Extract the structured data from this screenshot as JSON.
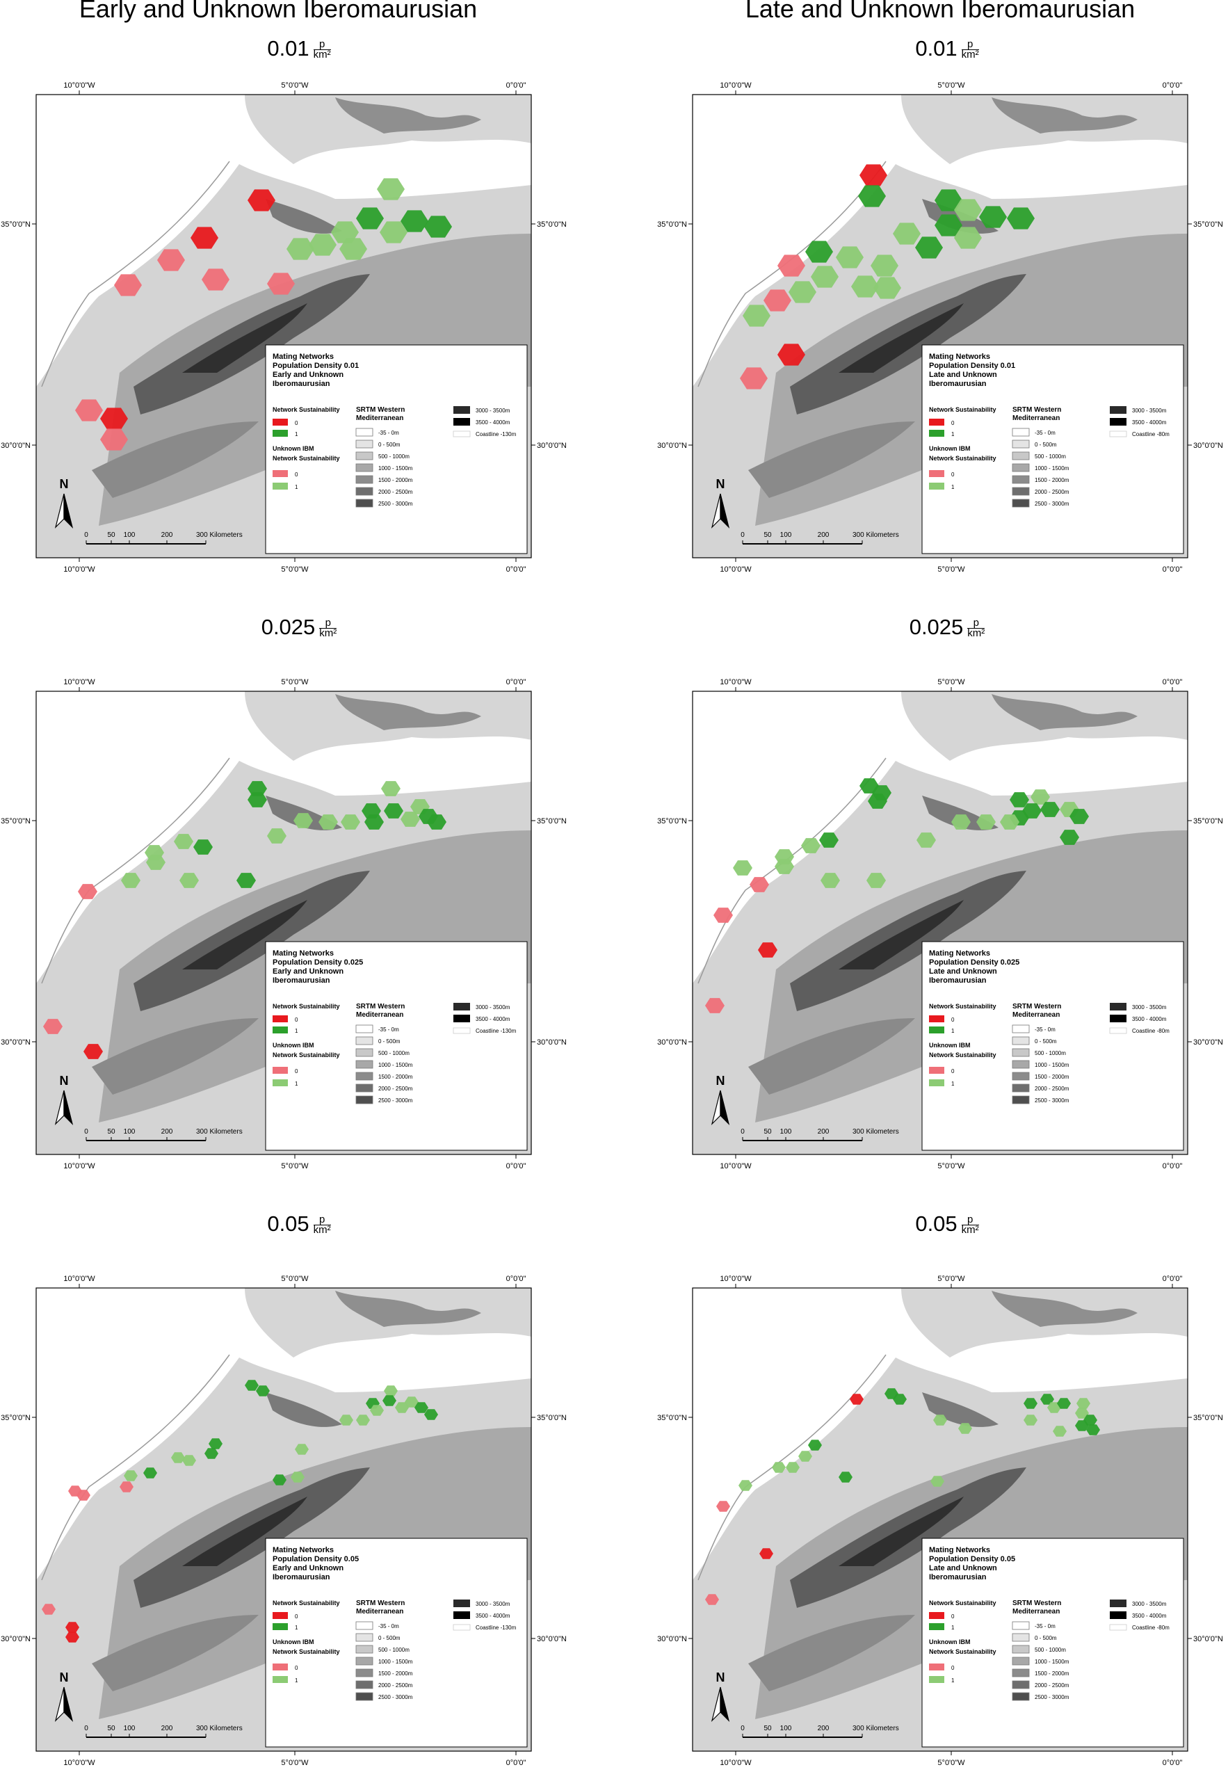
{
  "columns": [
    {
      "title": "Early and Unknown Iberomaurusian"
    },
    {
      "title": "Late and Unknown Iberomaurusian"
    }
  ],
  "unit": {
    "numerator": "p",
    "denominator": "km²"
  },
  "axes": {
    "top_ticks": [
      "10°0'0\"W",
      "5°0'0\"W",
      "0°0'0\""
    ],
    "bottom_ticks": [
      "10°0'0\"W",
      "5°0'0\"W",
      "0°0'0\""
    ],
    "lat_ticks": [
      "35°0'0\"N",
      "30°0'0\"N"
    ]
  },
  "scale_bar": {
    "labels": [
      "0",
      "50",
      "100",
      "200",
      "300 Kilometers"
    ]
  },
  "north_arrow": "N",
  "colors": {
    "sustain_0": "#e8191e",
    "sustain_1": "#2ca02c",
    "unknown_0": "#ef6f78",
    "unknown_1": "#8ccb74",
    "sea": "#ffffff",
    "low_land": "#d4d4d4"
  },
  "legend_common": {
    "network_sustainability": "Network Sustainability",
    "unknown_ibm": "Unknown IBM",
    "unknown_sustainability": "Network Sustainability",
    "val0": "0",
    "val1": "1",
    "srtm_title": "SRTM Western",
    "srtm_title2": "Mediterranean",
    "elevation_classes": [
      "-35 - 0m",
      "0 - 500m",
      "500 - 1000m",
      "1000 - 1500m",
      "1500 - 2000m",
      "2000 - 2500m",
      "2500 - 3000m"
    ],
    "elevation_high": [
      "3000 - 3500m",
      "3500 - 4000m"
    ]
  },
  "panels": [
    {
      "id": "p1",
      "density": "0.01",
      "legend": {
        "line1": "Mating Networks",
        "line2": "Population Density 0.01",
        "line3": "Early and Unknown",
        "line4": "Iberomaurusian",
        "coastline": "Coastline -130m"
      }
    },
    {
      "id": "p2",
      "density": "0.01",
      "legend": {
        "line1": "Mating Networks",
        "line2": "Population Density 0.01",
        "line3": "Late and Unknown",
        "line4": "Iberomaurusian",
        "coastline": "Coastline -80m"
      }
    },
    {
      "id": "p3",
      "density": "0.025",
      "legend": {
        "line1": "Mating Networks",
        "line2": "Population Density 0.025",
        "line3": "Early and Unknown",
        "line4": "Iberomaurusian",
        "coastline": "Coastline -130m"
      }
    },
    {
      "id": "p4",
      "density": "0.025",
      "legend": {
        "line1": "Mating Networks",
        "line2": "Population Density 0.025",
        "line3": "Late and Unknown",
        "line4": "Iberomaurusian",
        "coastline": "Coastline -80m"
      }
    },
    {
      "id": "p5",
      "density": "0.05",
      "legend": {
        "line1": "Mating Networks",
        "line2": "Population Density 0.05",
        "line3": "Early and Unknown",
        "line4": "Iberomaurusian",
        "coastline": "Coastline -130m"
      }
    },
    {
      "id": "p6",
      "density": "0.05",
      "legend": {
        "line1": "Mating Networks",
        "line2": "Population Density 0.05",
        "line3": "Late and Unknown",
        "line4": "Iberomaurusian",
        "coastline": "Coastline -80m"
      }
    }
  ]
}
